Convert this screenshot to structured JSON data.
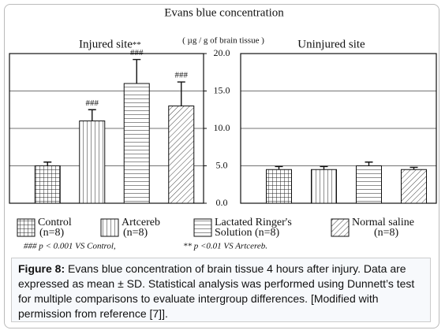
{
  "chart_data": {
    "type": "bar",
    "title": "Evans blue concentration",
    "subtitle": "( µg / g of brain tissue )",
    "ylim": [
      0,
      20
    ],
    "yticks": [
      {
        "value": 0,
        "label": "0.0"
      },
      {
        "value": 5,
        "label": "5.0"
      },
      {
        "value": 10,
        "label": "10.0"
      },
      {
        "value": 15,
        "label": "15.0"
      },
      {
        "value": 20,
        "label": "20.0"
      }
    ],
    "grid": true,
    "patterns": [
      "grid",
      "vertical",
      "horizontal",
      "diagonal"
    ],
    "legend": [
      [
        "Control",
        "(n=8)"
      ],
      [
        "Artcereb",
        "(n=8)"
      ],
      [
        "Lactated Ringer's",
        "Solution (n=8)"
      ],
      [
        "Normal saline",
        "(n=8)"
      ]
    ],
    "panels": [
      {
        "title": "Injured site",
        "values": [
          5.0,
          11.0,
          16.0,
          13.0
        ],
        "errors": [
          0.5,
          1.5,
          3.2,
          3.2
        ],
        "significance": [
          null,
          "###",
          "###",
          "###"
        ],
        "significance_top": [
          null,
          null,
          "**",
          null
        ]
      },
      {
        "title": "Uninjured site",
        "values": [
          4.5,
          4.5,
          5.0,
          4.5
        ],
        "errors": [
          0.4,
          0.4,
          0.5,
          0.3
        ],
        "significance": [
          null,
          null,
          null,
          null
        ],
        "significance_top": [
          null,
          null,
          null,
          null
        ]
      }
    ],
    "footnote": [
      "### p < 0.001 VS Control,",
      "** p <0.01 VS Artcereb."
    ]
  },
  "caption": {
    "label": "Figure 8:",
    "text": "Evans blue concentration of brain tissue 4 hours after injury. Data are expressed as mean ± SD. Statistical analysis was performed using Dunnett’s test for multiple comparisons to evaluate intergroup differences. [Modified with permission from reference [7]]."
  }
}
